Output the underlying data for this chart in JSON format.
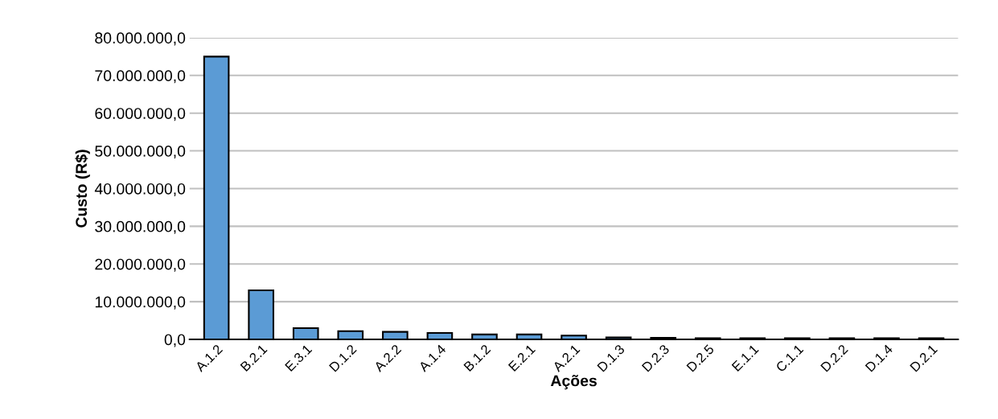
{
  "chart_data": {
    "type": "bar",
    "xlabel": "Ações",
    "ylabel": "Custo (R$)",
    "categories": [
      "A.1.2",
      "B.2.1",
      "E.3.1",
      "D.1.2",
      "A.2.2",
      "A.1.4",
      "B.1.2",
      "E.2.1",
      "A.2.1",
      "D.1.3",
      "D.2.3",
      "D.2.5",
      "E.1.1",
      "C.1.1",
      "D.2.2",
      "D.1.4",
      "D.2.1"
    ],
    "values": [
      75000000,
      13000000,
      3000000,
      2200000,
      2000000,
      1700000,
      1300000,
      1300000,
      1000000,
      500000,
      400000,
      300000,
      300000,
      300000,
      300000,
      300000,
      300000
    ],
    "color": "#5b9bd5",
    "ylim": [
      0,
      80000000
    ],
    "yticks": [
      {
        "value": 0,
        "label": "0,0"
      },
      {
        "value": 10000000,
        "label": "10.000.000,0"
      },
      {
        "value": 20000000,
        "label": "20.000.000,0"
      },
      {
        "value": 30000000,
        "label": "30.000.000,0"
      },
      {
        "value": 40000000,
        "label": "40.000.000,0"
      },
      {
        "value": 50000000,
        "label": "50.000.000,0"
      },
      {
        "value": 60000000,
        "label": "60.000.000,0"
      },
      {
        "value": 70000000,
        "label": "70.000.000,0"
      },
      {
        "value": 80000000,
        "label": "80.000.000,0"
      }
    ],
    "grid": "y"
  }
}
